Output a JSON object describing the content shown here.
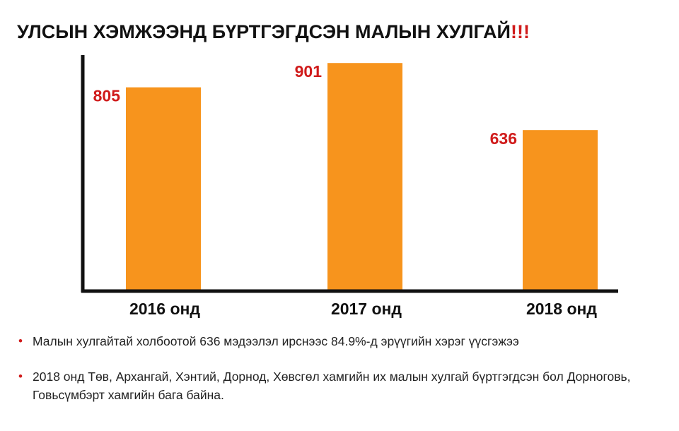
{
  "title": {
    "text": "УЛСЫН ХЭМЖЭЭНД БҮРТГЭГДСЭН МАЛЫН ХУЛГАЙ",
    "emphasis": "!!!"
  },
  "colors": {
    "bar": "#f7941d",
    "value_label": "#d01b1b",
    "axis": "#111111",
    "bullet": "#d01b1b"
  },
  "chart_data": {
    "type": "bar",
    "title": "УЛСЫН ХЭМЖЭЭНД БҮРТГЭГДСЭН МАЛЫН ХУЛГАЙ!!!",
    "categories": [
      "2016 онд",
      "2017 онд",
      "2018 онд"
    ],
    "values": [
      805,
      901,
      636
    ],
    "value_labels": [
      "805",
      "901",
      "636"
    ],
    "ylim": [
      0,
      1150
    ],
    "grid": false,
    "legend": "none"
  },
  "notes": [
    {
      "bullet": "•",
      "text": "Малын хулгайтай холбоотой 636 мэдээлэл ирснээс 84.9%-д эрүүгийн хэрэг үүсгэжээ"
    },
    {
      "bullet": "•",
      "text": "2018 онд Төв, Архангай, Хэнтий, Дорнод, Хөвсгөл хамгийн их малын хулгай бүртгэгдсэн бол Дорноговь, Говьсүмбэрт хамгийн бага байна."
    }
  ]
}
